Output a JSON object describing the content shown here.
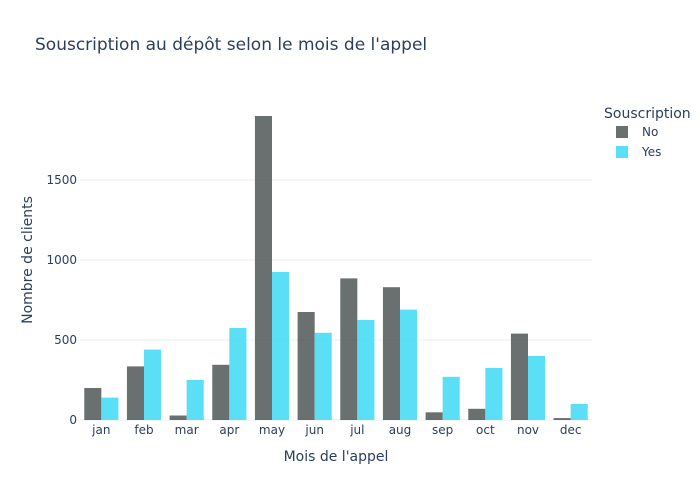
{
  "chart_data": {
    "type": "bar",
    "title": "Souscription au dépôt selon le mois de l'appel",
    "xlabel": "Mois de l'appel",
    "ylabel": "Nombre de clients",
    "categories": [
      "jan",
      "feb",
      "mar",
      "apr",
      "may",
      "jun",
      "jul",
      "aug",
      "sep",
      "oct",
      "nov",
      "dec"
    ],
    "series": [
      {
        "name": "No",
        "color": "#505656",
        "values": [
          200,
          335,
          28,
          345,
          1900,
          675,
          885,
          830,
          48,
          70,
          540,
          12
        ]
      },
      {
        "name": "Yes",
        "color": "#3dd9f5",
        "values": [
          140,
          440,
          250,
          575,
          925,
          545,
          625,
          690,
          270,
          325,
          400,
          100
        ]
      }
    ],
    "ylim": [
      0,
      2000
    ],
    "yticks": [
      0,
      500,
      1000,
      1500
    ],
    "grid": true,
    "barmode": "group",
    "legend": {
      "title": "Souscription",
      "placement": "top-right"
    }
  }
}
